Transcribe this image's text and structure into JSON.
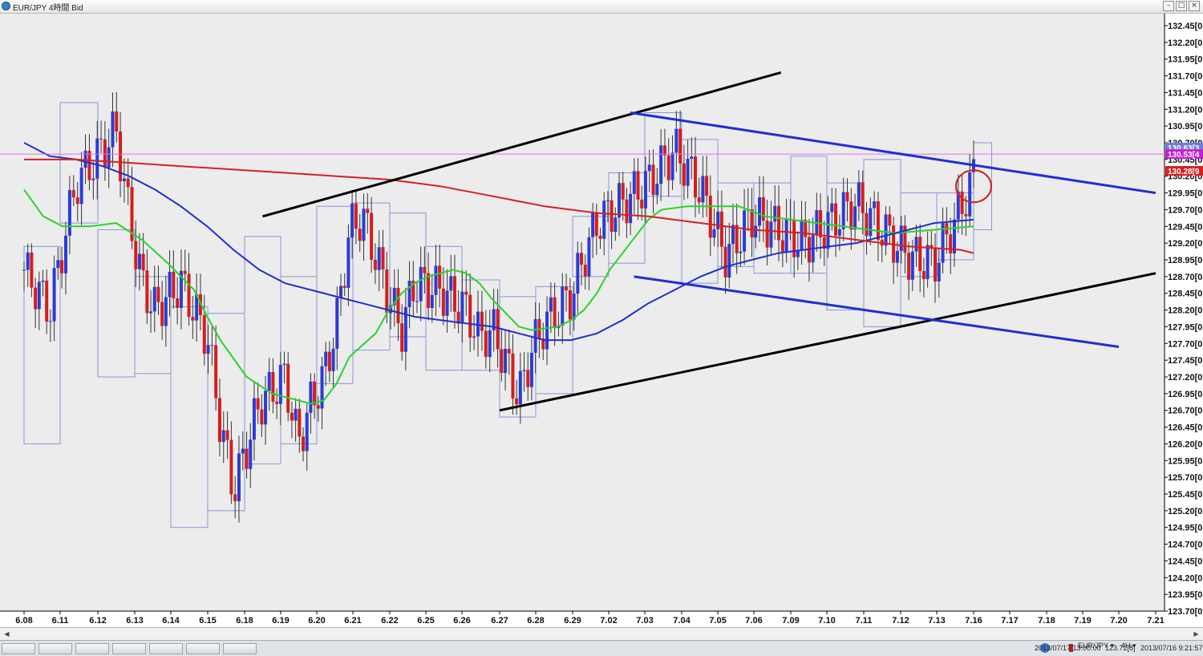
{
  "window": {
    "title": "EUR/JPY 4時間 Bid",
    "icon": "app-globe-icon",
    "controls": [
      "minimize-icon",
      "maximize-icon",
      "close-icon"
    ]
  },
  "chart_data": {
    "type": "candlestick",
    "symbol": "EUR/JPY",
    "timeframe": "4時間",
    "price_side": "Bid",
    "y_ticks": [
      "132.45[0",
      "132.20[0",
      "131.95[0",
      "131.70[0",
      "131.45[0",
      "131.20[0",
      "130.95[0",
      "130.70[0",
      "130.45[0",
      "130.20[0",
      "129.95[0",
      "129.70[0",
      "129.45[0",
      "129.20[0",
      "128.95[0",
      "128.70[0",
      "128.45[0",
      "128.20[0",
      "127.95[0",
      "127.70[0",
      "127.45[0",
      "127.20[0",
      "126.95[0",
      "126.70[0",
      "126.45[0",
      "126.20[0",
      "125.95[0",
      "125.70[0",
      "125.45[0",
      "125.20[0",
      "124.95[0",
      "124.70[0",
      "124.45[0",
      "124.20[0",
      "123.95[0",
      "123.70[0"
    ],
    "y_tick_values": [
      132.45,
      132.2,
      131.95,
      131.7,
      131.45,
      131.2,
      130.95,
      130.7,
      130.45,
      130.2,
      129.95,
      129.7,
      129.45,
      129.2,
      128.95,
      128.7,
      128.45,
      128.2,
      127.95,
      127.7,
      127.45,
      127.2,
      126.95,
      126.7,
      126.45,
      126.2,
      125.95,
      125.7,
      125.45,
      125.2,
      124.95,
      124.7,
      124.45,
      124.2,
      123.95,
      123.7
    ],
    "x_ticks": [
      "6.08",
      "6.11",
      "6.12",
      "6.13",
      "6.14",
      "6.15",
      "6.18",
      "6.19",
      "6.20",
      "6.21",
      "6.22",
      "6.25",
      "6.26",
      "6.27",
      "6.28",
      "6.29",
      "7.02",
      "7.03",
      "7.04",
      "7.05",
      "7.06",
      "7.09",
      "7.10",
      "7.11",
      "7.12",
      "7.13",
      "7.16",
      "7.17",
      "7.18",
      "7.19",
      "7.20",
      "7.21"
    ],
    "price_labels": [
      {
        "text": "130.63[3",
        "value": 130.63,
        "color": "#6f7fd6"
      },
      {
        "text": "130.53[4",
        "value": 130.53,
        "color": "#c21fd1"
      },
      {
        "text": "130.28[9",
        "value": 130.28,
        "color": "#d42020"
      }
    ],
    "horizontal_line": {
      "value": 130.53,
      "color": "#e46cf0"
    },
    "day_boxes": [
      {
        "x0": 6.08,
        "x1": 6.11,
        "high": 129.15,
        "low": 126.2
      },
      {
        "x0": 6.11,
        "x1": 6.12,
        "high": 131.3,
        "low": 129.5
      },
      {
        "x0": 6.12,
        "x1": 6.13,
        "high": 129.4,
        "low": 127.2
      },
      {
        "x0": 6.13,
        "x1": 6.14,
        "high": 128.7,
        "low": 127.25
      },
      {
        "x0": 6.14,
        "x1": 6.15,
        "high": 128.25,
        "low": 124.95
      },
      {
        "x0": 6.15,
        "x1": 6.18,
        "high": 128.15,
        "low": 125.2
      },
      {
        "x0": 6.18,
        "x1": 6.19,
        "high": 129.3,
        "low": 125.9
      },
      {
        "x0": 6.19,
        "x1": 6.2,
        "high": 128.7,
        "low": 126.2
      },
      {
        "x0": 6.2,
        "x1": 6.21,
        "high": 129.75,
        "low": 127.1
      },
      {
        "x0": 6.21,
        "x1": 6.22,
        "high": 129.8,
        "low": 127.6
      },
      {
        "x0": 6.22,
        "x1": 6.25,
        "high": 129.65,
        "low": 127.8
      },
      {
        "x0": 6.25,
        "x1": 6.26,
        "high": 129.15,
        "low": 127.3
      },
      {
        "x0": 6.26,
        "x1": 6.27,
        "high": 128.65,
        "low": 127.3
      },
      {
        "x0": 6.27,
        "x1": 6.28,
        "high": 128.4,
        "low": 126.6
      },
      {
        "x0": 6.28,
        "x1": 6.29,
        "high": 128.55,
        "low": 126.95
      },
      {
        "x0": 6.29,
        "x1": 7.02,
        "high": 129.6,
        "low": 128.7
      },
      {
        "x0": 7.02,
        "x1": 7.03,
        "high": 130.25,
        "low": 128.9
      },
      {
        "x0": 7.03,
        "x1": 7.04,
        "high": 131.15,
        "low": 129.9
      },
      {
        "x0": 7.04,
        "x1": 7.05,
        "high": 130.75,
        "low": 128.6
      },
      {
        "x0": 7.05,
        "x1": 7.06,
        "high": 130.1,
        "low": 128.85
      },
      {
        "x0": 7.06,
        "x1": 7.09,
        "high": 130.1,
        "low": 128.75
      },
      {
        "x0": 7.09,
        "x1": 7.1,
        "high": 130.5,
        "low": 128.75
      },
      {
        "x0": 7.1,
        "x1": 7.11,
        "high": 130.1,
        "low": 128.2
      },
      {
        "x0": 7.11,
        "x1": 7.12,
        "high": 130.45,
        "low": 127.95
      },
      {
        "x0": 7.12,
        "x1": 7.13,
        "high": 129.95,
        "low": 128.7
      },
      {
        "x0": 7.13,
        "x1": 7.16,
        "high": 129.95,
        "low": 128.95
      },
      {
        "x0": 7.16,
        "x1": 7.165,
        "high": 130.7,
        "low": 129.4
      }
    ],
    "trendlines": [
      {
        "from": [
          6.185,
          129.6
        ],
        "to": [
          7.082,
          131.75
        ],
        "color": "#000000",
        "width": 3
      },
      {
        "from": [
          6.27,
          126.7
        ],
        "to": [
          7.222,
          128.75
        ],
        "color": "#000000",
        "width": 3
      },
      {
        "from": [
          7.026,
          131.15
        ],
        "to": [
          7.212,
          129.95
        ],
        "color": "#1f2fd4",
        "width": 3
      },
      {
        "from": [
          7.027,
          128.7
        ],
        "to": [
          7.2,
          127.65
        ],
        "color": "#1f2fd4",
        "width": 3
      }
    ],
    "moving_averages": [
      {
        "color": "#28d428",
        "points": [
          [
            6.08,
            130.0
          ],
          [
            6.0875,
            129.6
          ],
          [
            6.095,
            129.45
          ],
          [
            6.105,
            129.45
          ],
          [
            6.115,
            129.5
          ],
          [
            6.125,
            129.25
          ],
          [
            6.135,
            128.9
          ],
          [
            6.145,
            128.5
          ],
          [
            6.15,
            128.1
          ],
          [
            6.155,
            127.75
          ],
          [
            6.165,
            127.2
          ],
          [
            6.175,
            126.95
          ],
          [
            6.185,
            126.85
          ],
          [
            6.19,
            126.8
          ],
          [
            6.195,
            126.85
          ],
          [
            6.2,
            127.1
          ],
          [
            6.205,
            127.5
          ],
          [
            6.215,
            127.85
          ],
          [
            6.22,
            128.2
          ],
          [
            6.225,
            128.45
          ],
          [
            6.23,
            128.6
          ],
          [
            6.235,
            128.7
          ],
          [
            6.24,
            128.75
          ],
          [
            6.245,
            128.8
          ],
          [
            6.25,
            128.75
          ],
          [
            6.255,
            128.6
          ],
          [
            6.26,
            128.35
          ],
          [
            6.265,
            128.15
          ],
          [
            6.27,
            127.95
          ],
          [
            6.275,
            127.9
          ],
          [
            6.285,
            127.95
          ],
          [
            6.29,
            128.05
          ],
          [
            6.295,
            128.2
          ],
          [
            6.3,
            128.45
          ],
          [
            6.305,
            128.8
          ],
          [
            6.31,
            129.05
          ],
          [
            6.315,
            129.3
          ],
          [
            6.32,
            129.55
          ],
          [
            6.325,
            129.7
          ],
          [
            6.335,
            129.75
          ],
          [
            6.345,
            129.75
          ],
          [
            6.355,
            129.75
          ],
          [
            6.365,
            129.6
          ],
          [
            6.375,
            129.55
          ],
          [
            6.385,
            129.5
          ],
          [
            6.395,
            129.45
          ],
          [
            6.405,
            129.4
          ],
          [
            6.415,
            129.35
          ],
          [
            6.43,
            129.4
          ],
          [
            6.445,
            129.45
          ]
        ]
      },
      {
        "color": "#1f2fd4",
        "points": [
          [
            6.08,
            130.7
          ],
          [
            6.09,
            130.5
          ],
          [
            6.1,
            130.45
          ],
          [
            6.11,
            130.35
          ],
          [
            6.12,
            130.2
          ],
          [
            6.13,
            130.0
          ],
          [
            6.14,
            129.75
          ],
          [
            6.15,
            129.45
          ],
          [
            6.16,
            129.1
          ],
          [
            6.17,
            128.8
          ],
          [
            6.18,
            128.6
          ],
          [
            6.19,
            128.5
          ],
          [
            6.2,
            128.4
          ],
          [
            6.21,
            128.3
          ],
          [
            6.22,
            128.2
          ],
          [
            6.23,
            128.1
          ],
          [
            6.24,
            128.05
          ],
          [
            6.25,
            128.0
          ],
          [
            6.26,
            127.95
          ],
          [
            6.27,
            127.85
          ],
          [
            6.28,
            127.75
          ],
          [
            6.29,
            127.75
          ],
          [
            6.3,
            127.85
          ],
          [
            6.31,
            128.05
          ],
          [
            6.32,
            128.3
          ],
          [
            6.33,
            128.5
          ],
          [
            6.34,
            128.7
          ],
          [
            6.35,
            128.85
          ],
          [
            6.36,
            128.95
          ],
          [
            6.37,
            129.05
          ],
          [
            6.38,
            129.1
          ],
          [
            6.39,
            129.15
          ],
          [
            6.4,
            129.2
          ],
          [
            6.41,
            129.3
          ],
          [
            6.42,
            129.4
          ],
          [
            6.43,
            129.5
          ],
          [
            6.445,
            129.55
          ]
        ]
      },
      {
        "color": "#d62020",
        "points": [
          [
            6.08,
            130.45
          ],
          [
            6.1,
            130.45
          ],
          [
            6.12,
            130.4
          ],
          [
            6.14,
            130.35
          ],
          [
            6.16,
            130.3
          ],
          [
            6.18,
            130.25
          ],
          [
            6.2,
            130.2
          ],
          [
            6.22,
            130.15
          ],
          [
            6.24,
            130.05
          ],
          [
            6.26,
            129.9
          ],
          [
            6.28,
            129.75
          ],
          [
            6.3,
            129.65
          ],
          [
            6.32,
            129.6
          ],
          [
            6.34,
            129.5
          ],
          [
            6.36,
            129.4
          ],
          [
            6.38,
            129.35
          ],
          [
            6.4,
            129.25
          ],
          [
            6.42,
            129.15
          ],
          [
            6.44,
            129.1
          ],
          [
            6.445,
            129.05
          ]
        ]
      }
    ],
    "annotation_circle": {
      "date": 7.16,
      "value": 130.05,
      "color": "#d42020"
    }
  },
  "scrollbar": {
    "left_arrow": "scroll-left-icon",
    "right_arrow": "scroll-right-icon"
  },
  "statusbar": {
    "symbol_dropdown": "EUR/JPY",
    "timeframe_dropdown": "4H",
    "cursor_time": "2013/07/17 13:00:00",
    "cursor_price": "123.72[8]",
    "last_update": "2013/07/16 9:21:57",
    "taskbar_icons": [
      "taskbar-app-1-icon",
      "taskbar-app-2-icon",
      "taskbar-app-3-icon",
      "taskbar-app-4-icon",
      "taskbar-app-5-icon",
      "taskbar-app-6-icon",
      "taskbar-app-7-icon"
    ]
  }
}
